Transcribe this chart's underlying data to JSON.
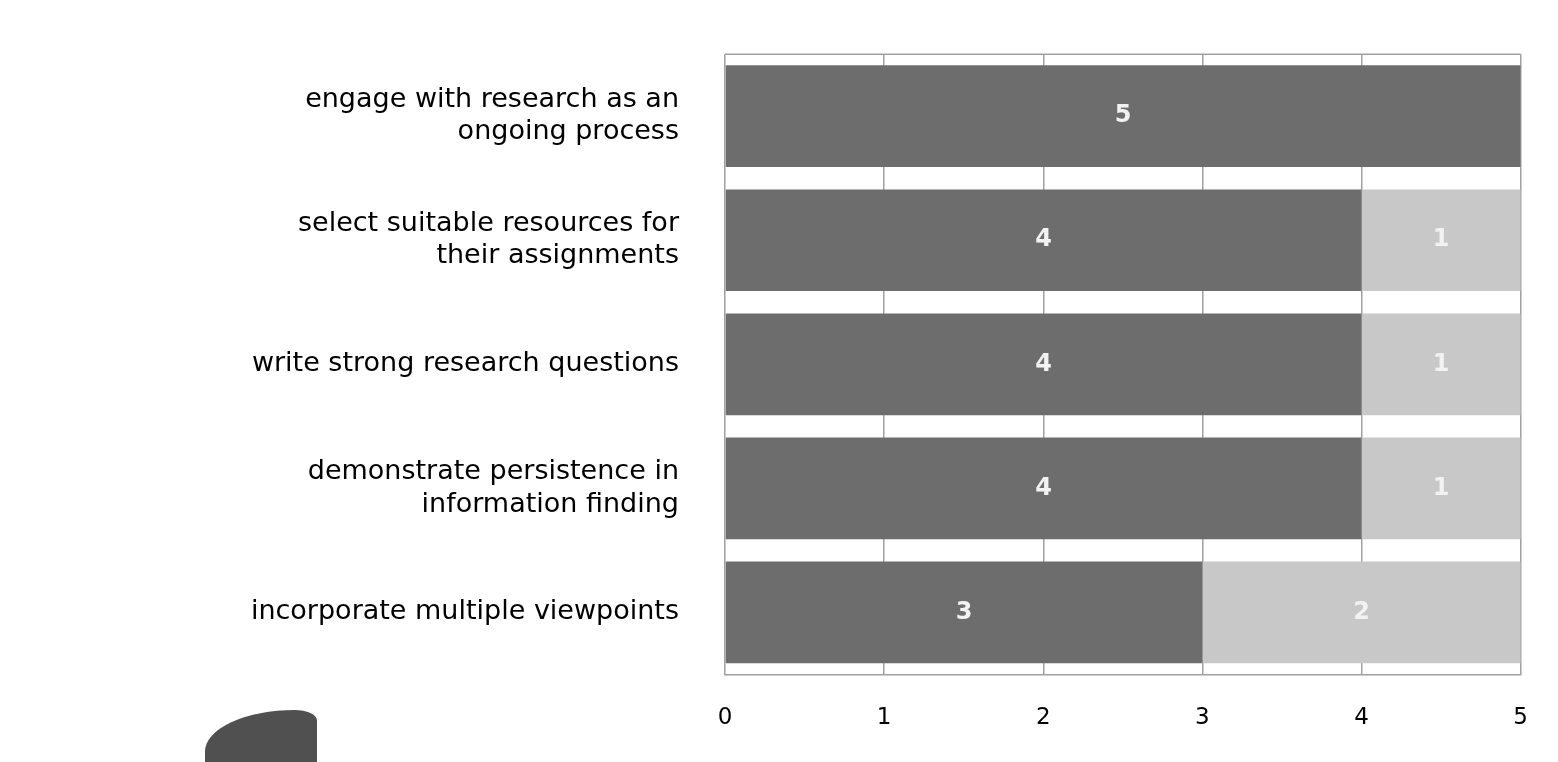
{
  "chart_data": {
    "type": "bar",
    "orientation": "horizontal",
    "stacked": true,
    "categories": [
      "engage with research as an ongoing process",
      "select suitable resources for their assignments",
      "write strong research questions",
      "demonstrate persistence in information finding",
      "incorporate multiple viewpoints"
    ],
    "series": [
      {
        "color": "#6d6d6d",
        "values": [
          5,
          4,
          4,
          4,
          3
        ]
      },
      {
        "color": "#c8c8c8",
        "values": [
          null,
          1,
          1,
          1,
          2
        ]
      }
    ],
    "xlim": [
      0,
      5
    ],
    "xticks": [
      0,
      1,
      2,
      3,
      4,
      5
    ],
    "grid": "x",
    "legend": false,
    "data_labels": true
  }
}
